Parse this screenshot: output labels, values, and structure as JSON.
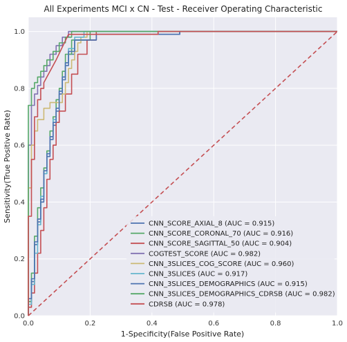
{
  "chart_data": {
    "type": "line",
    "title": "All Experiments MCI x CN - Test - Receiver Operating Characteristic",
    "xlabel": "1-Specificity(False Positive Rate)",
    "ylabel": "Sensitivity(True Positive Rate)",
    "xlim": [
      0,
      1
    ],
    "ylim": [
      0,
      1.05
    ],
    "xticks": [
      "0.0",
      "0.2",
      "0.4",
      "0.6",
      "0.8",
      "1.0"
    ],
    "yticks": [
      "0.0",
      "0.2",
      "0.4",
      "0.6",
      "0.8",
      "1.0"
    ],
    "grid": true,
    "legend_position": "lower-right",
    "series": [
      {
        "name": "CNN_SCORE_AXIAL_8 (AUC = 0.915)",
        "color": "#4c72b0",
        "x": [
          0,
          0,
          0.01,
          0.01,
          0.02,
          0.02,
          0.03,
          0.03,
          0.04,
          0.04,
          0.05,
          0.05,
          0.06,
          0.06,
          0.07,
          0.07,
          0.08,
          0.08,
          0.09,
          0.09,
          0.1,
          0.1,
          0.11,
          0.11,
          0.12,
          0.12,
          0.13,
          0.13,
          0.15,
          0.15,
          0.22,
          0.22,
          0.49,
          0.49,
          1.0
        ],
        "y": [
          0,
          0.05,
          0.05,
          0.12,
          0.12,
          0.25,
          0.25,
          0.33,
          0.33,
          0.4,
          0.4,
          0.5,
          0.5,
          0.56,
          0.56,
          0.62,
          0.62,
          0.67,
          0.67,
          0.72,
          0.72,
          0.78,
          0.78,
          0.83,
          0.83,
          0.88,
          0.88,
          0.92,
          0.92,
          0.97,
          0.97,
          0.99,
          0.99,
          1.0,
          1.0
        ]
      },
      {
        "name": "CNN_SCORE_CORONAL_70 (AUC = 0.916)",
        "color": "#55a868",
        "x": [
          0,
          0,
          0.01,
          0.01,
          0.02,
          0.02,
          0.03,
          0.03,
          0.04,
          0.04,
          0.05,
          0.05,
          0.06,
          0.06,
          0.07,
          0.07,
          0.08,
          0.08,
          0.09,
          0.09,
          0.1,
          0.1,
          0.11,
          0.11,
          0.12,
          0.12,
          0.14,
          0.14,
          0.2,
          0.2,
          1.0
        ],
        "y": [
          0,
          0.05,
          0.05,
          0.15,
          0.15,
          0.28,
          0.28,
          0.38,
          0.38,
          0.45,
          0.45,
          0.52,
          0.52,
          0.58,
          0.58,
          0.65,
          0.65,
          0.7,
          0.7,
          0.76,
          0.76,
          0.8,
          0.8,
          0.86,
          0.86,
          0.92,
          0.92,
          0.97,
          0.97,
          1.0,
          1.0
        ]
      },
      {
        "name": "CNN_SCORE_SAGITTAL_50 (AUC = 0.904)",
        "color": "#c44e52",
        "x": [
          0,
          0,
          0.01,
          0.01,
          0.02,
          0.02,
          0.03,
          0.03,
          0.04,
          0.04,
          0.05,
          0.05,
          0.06,
          0.06,
          0.07,
          0.07,
          0.08,
          0.08,
          0.09,
          0.09,
          0.1,
          0.1,
          0.12,
          0.12,
          0.14,
          0.14,
          0.16,
          0.16,
          0.19,
          0.19,
          0.22,
          0.22,
          1.0
        ],
        "y": [
          0,
          0.03,
          0.03,
          0.08,
          0.08,
          0.15,
          0.15,
          0.22,
          0.22,
          0.3,
          0.3,
          0.38,
          0.38,
          0.48,
          0.48,
          0.55,
          0.55,
          0.6,
          0.6,
          0.68,
          0.68,
          0.72,
          0.72,
          0.78,
          0.78,
          0.85,
          0.85,
          0.92,
          0.92,
          0.97,
          0.97,
          1.0,
          1.0
        ]
      },
      {
        "name": "COGTEST_SCORE (AUC = 0.982)",
        "color": "#8172b2",
        "x": [
          0,
          0,
          0.01,
          0.01,
          0.02,
          0.02,
          0.03,
          0.03,
          0.04,
          0.04,
          0.05,
          0.05,
          0.06,
          0.06,
          0.07,
          0.07,
          0.09,
          0.09,
          0.11,
          0.11,
          0.13,
          0.13,
          1.0
        ],
        "y": [
          0,
          0.6,
          0.6,
          0.74,
          0.74,
          0.78,
          0.78,
          0.81,
          0.81,
          0.84,
          0.84,
          0.86,
          0.86,
          0.88,
          0.88,
          0.92,
          0.92,
          0.95,
          0.95,
          0.98,
          0.98,
          1.0,
          1.0
        ]
      },
      {
        "name": "CNN_3SLICES_COG_SCORE (AUC = 0.960)",
        "color": "#ccb974",
        "x": [
          0,
          0,
          0.01,
          0.01,
          0.02,
          0.02,
          0.03,
          0.03,
          0.05,
          0.05,
          0.07,
          0.07,
          0.11,
          0.11,
          0.12,
          0.12,
          0.13,
          0.13,
          0.14,
          0.14,
          0.15,
          0.15,
          0.16,
          0.16,
          0.17,
          0.17,
          0.19,
          0.19,
          1.0
        ],
        "y": [
          0,
          0.45,
          0.45,
          0.6,
          0.6,
          0.65,
          0.65,
          0.69,
          0.69,
          0.73,
          0.73,
          0.75,
          0.75,
          0.78,
          0.78,
          0.82,
          0.82,
          0.87,
          0.87,
          0.9,
          0.9,
          0.93,
          0.93,
          0.96,
          0.96,
          0.98,
          0.98,
          1.0,
          1.0
        ]
      },
      {
        "name": "CNN_3SLICES (AUC = 0.917)",
        "color": "#64b5cd",
        "x": [
          0,
          0,
          0.01,
          0.01,
          0.02,
          0.02,
          0.03,
          0.03,
          0.04,
          0.04,
          0.05,
          0.05,
          0.06,
          0.06,
          0.07,
          0.07,
          0.08,
          0.08,
          0.09,
          0.09,
          0.1,
          0.1,
          0.11,
          0.11,
          0.12,
          0.12,
          0.13,
          0.13,
          0.15,
          0.15,
          0.18,
          0.18,
          1.0
        ],
        "y": [
          0,
          0.04,
          0.04,
          0.11,
          0.11,
          0.22,
          0.22,
          0.32,
          0.32,
          0.42,
          0.42,
          0.5,
          0.5,
          0.57,
          0.57,
          0.63,
          0.63,
          0.69,
          0.69,
          0.73,
          0.73,
          0.79,
          0.79,
          0.84,
          0.84,
          0.89,
          0.89,
          0.94,
          0.94,
          0.98,
          0.98,
          1.0,
          1.0
        ]
      },
      {
        "name": "CNN_3SLICES_DEMOGRAPHICS (AUC = 0.915)",
        "color": "#4c72b0",
        "x": [
          0,
          0,
          0.01,
          0.01,
          0.02,
          0.02,
          0.03,
          0.03,
          0.04,
          0.04,
          0.05,
          0.05,
          0.06,
          0.06,
          0.07,
          0.07,
          0.08,
          0.08,
          0.09,
          0.09,
          0.1,
          0.1,
          0.11,
          0.11,
          0.12,
          0.12,
          0.13,
          0.13,
          0.15,
          0.15,
          0.22,
          0.22,
          0.49,
          0.49,
          1.0
        ],
        "y": [
          0,
          0.06,
          0.06,
          0.13,
          0.13,
          0.26,
          0.26,
          0.34,
          0.34,
          0.41,
          0.41,
          0.51,
          0.51,
          0.57,
          0.57,
          0.63,
          0.63,
          0.68,
          0.68,
          0.73,
          0.73,
          0.79,
          0.79,
          0.84,
          0.84,
          0.89,
          0.89,
          0.93,
          0.93,
          0.97,
          0.97,
          0.99,
          0.99,
          1.0,
          1.0
        ]
      },
      {
        "name": "CNN_3SLICES_DEMOGRAPHICS_CDRSB (AUC = 0.982)",
        "color": "#55a868",
        "x": [
          0,
          0,
          0.01,
          0.01,
          0.02,
          0.02,
          0.03,
          0.03,
          0.04,
          0.04,
          0.05,
          0.05,
          0.06,
          0.06,
          0.08,
          0.08,
          0.1,
          0.1,
          0.12,
          0.12,
          0.14,
          0.14,
          1.0
        ],
        "y": [
          0,
          0.74,
          0.74,
          0.8,
          0.8,
          0.82,
          0.82,
          0.84,
          0.84,
          0.86,
          0.86,
          0.88,
          0.88,
          0.9,
          0.9,
          0.93,
          0.93,
          0.96,
          0.96,
          0.98,
          0.98,
          1.0,
          1.0
        ]
      },
      {
        "name": "CDRSB (AUC = 0.978)",
        "color": "#c44e52",
        "x": [
          0,
          0,
          0.01,
          0.01,
          0.02,
          0.02,
          0.03,
          0.03,
          0.04,
          0.04,
          0.05,
          0.05,
          0.09,
          0.13,
          0.13,
          0.42,
          0.42,
          1.0
        ],
        "y": [
          0,
          0.35,
          0.35,
          0.55,
          0.55,
          0.7,
          0.7,
          0.76,
          0.76,
          0.8,
          0.8,
          0.82,
          0.9,
          0.99,
          0.99,
          0.99,
          1.0,
          1.0
        ]
      },
      {
        "name": "",
        "color": "#c44e52",
        "dashed": true,
        "x": [
          0,
          1
        ],
        "y": [
          0,
          1
        ]
      }
    ]
  }
}
